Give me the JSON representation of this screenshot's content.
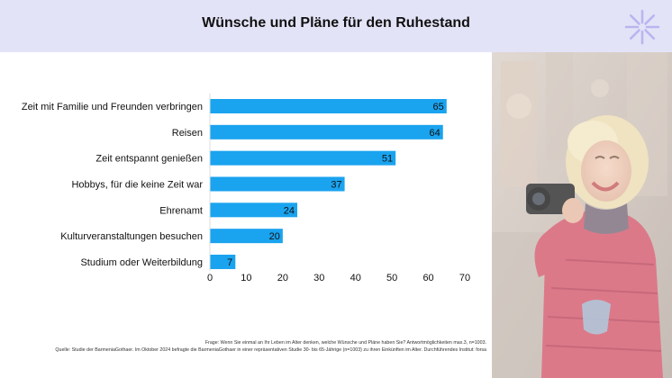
{
  "header": {
    "title": "Wünsche und Pläne für den Ruhestand",
    "logo_icon": "asterisk-burst-icon",
    "logo_color": "#b9b6ef",
    "background": "#e3e3f8"
  },
  "chart_data": {
    "type": "bar",
    "orientation": "horizontal",
    "categories": [
      "Zeit mit Familie und Freunden verbringen",
      "Reisen",
      "Zeit entspannt genießen",
      "Hobbys, für die keine Zeit war",
      "Ehrenamt",
      "Kulturveranstaltungen besuchen",
      "Studium oder Weiterbildung"
    ],
    "values": [
      65,
      64,
      51,
      37,
      24,
      20,
      7
    ],
    "xlim": [
      0,
      70
    ],
    "xticks": [
      "0",
      "10",
      "20",
      "30",
      "40",
      "50",
      "60",
      "70"
    ],
    "bar_color": "#1aa3ef",
    "data_labels": true,
    "grid": false,
    "title": "",
    "xlabel": "",
    "ylabel": ""
  },
  "photo": {
    "description_icon": "senior-woman-with-camera-photo"
  },
  "footnotes": {
    "question": "Frage: Wenn Sie einmal an Ihr Leben im Alter denken, welche Wünsche und Pläne haben Sie? Antwortmöglichkeiten max.3, n=1003.",
    "source": "Quelle: Studie der BarmeniaGothaer. Im Oktober 2024 befragte die BarmeniaGothaer in einer repräsentativen Studie 30- bis 65-Jährige (n=1003) zu ihren Einkünften im Alter. Durchführendes Institut: forsa"
  }
}
